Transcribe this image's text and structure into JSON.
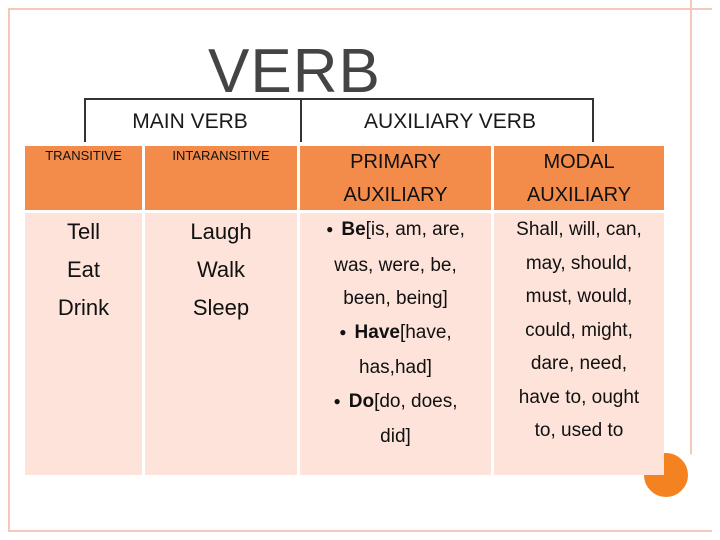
{
  "title": "VERB",
  "headings": {
    "main": "MAIN VERB",
    "auxiliary": "AUXILIARY VERB"
  },
  "columns": {
    "transitive": {
      "header": "TRANSITIVE",
      "items": [
        "Tell",
        "Eat",
        "Drink"
      ]
    },
    "intransitive": {
      "header": "INTARANSITIVE",
      "items": [
        "Laugh",
        "Walk",
        "Sleep"
      ]
    },
    "primary": {
      "header_line1": "PRIMARY",
      "header_line2": "AUXILIARY",
      "be_label": "Be",
      "be_line1": "[is, am, are,",
      "be_line2": "was, were, be,",
      "be_line3": "been, being]",
      "have_label": "Have",
      "have_line1": "[have,",
      "have_line2": "has,had]",
      "do_label": "Do",
      "do_line1": "[do, does,",
      "do_line2": "did]"
    },
    "modal": {
      "header_line1": "MODAL",
      "header_line2": "AUXILIARY",
      "lines": [
        "Shall, will, can,",
        "may, should,",
        "must, would,",
        "could, might,",
        "dare, need,",
        "have to, ought",
        "to, used to"
      ]
    }
  },
  "colors": {
    "header": "#f38b4a",
    "body": "#fde3d9",
    "accent": "#f58220",
    "frame": "#f4c8ba"
  }
}
